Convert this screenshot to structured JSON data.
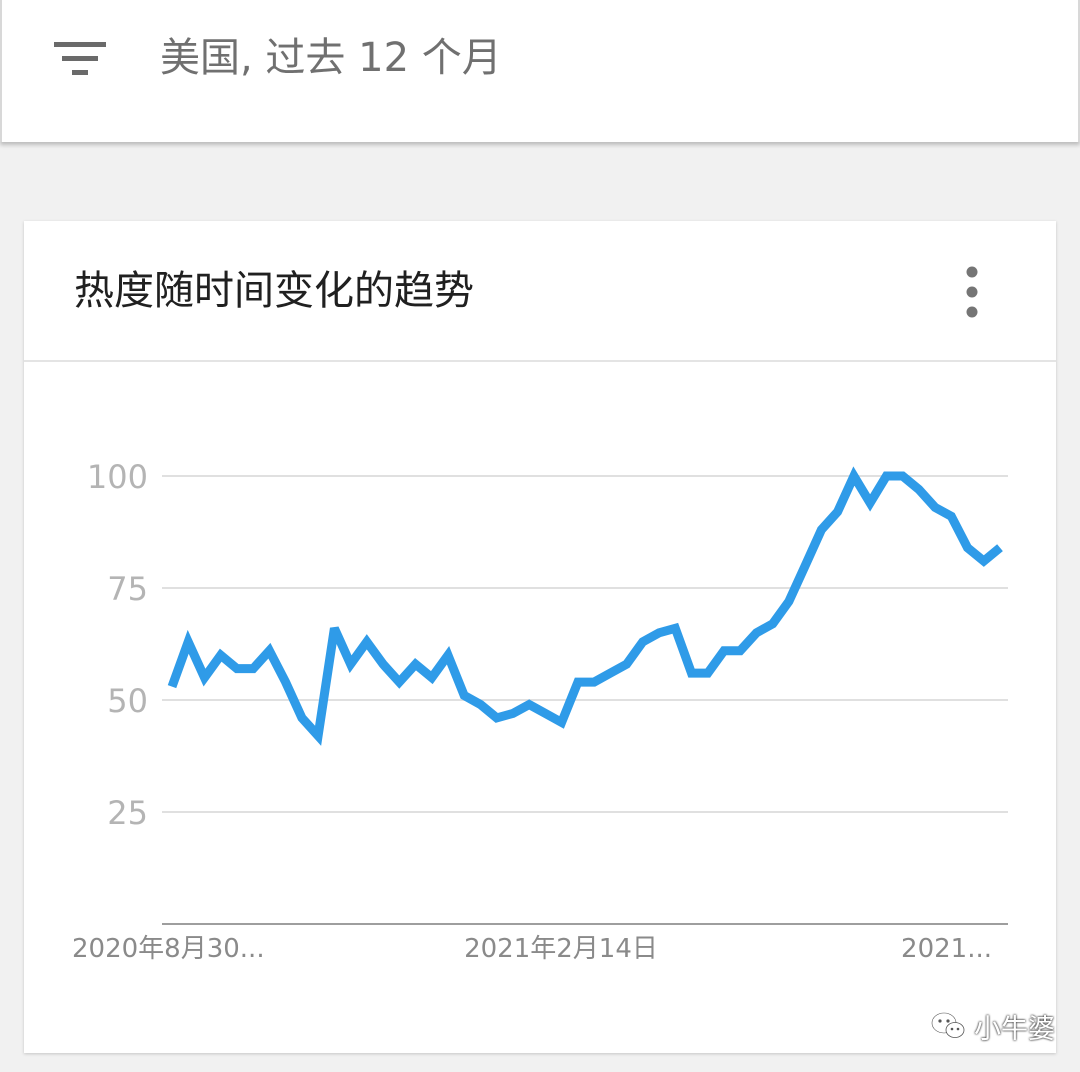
{
  "header": {
    "filter_label": "美国, 过去 12 个月",
    "filter_icon": "filter-icon"
  },
  "card": {
    "title": "热度随时间变化的趋势",
    "menu_icon": "more-vert-icon"
  },
  "chart_data": {
    "type": "line",
    "title": "",
    "xlabel": "",
    "ylabel": "",
    "ylim": [
      0,
      100
    ],
    "y_ticks": [
      25,
      50,
      75,
      100
    ],
    "x_tick_labels": [
      "2020年8月30...",
      "2021年2月14日",
      "2021..."
    ],
    "grid": true,
    "line_color": "#2f9be8",
    "series": [
      {
        "values": [
          53,
          63,
          55,
          60,
          57,
          57,
          61,
          54,
          46,
          42,
          66,
          58,
          63,
          58,
          54,
          58,
          55,
          60,
          51,
          49,
          46,
          47,
          49,
          47,
          45,
          54,
          54,
          56,
          58,
          63,
          65,
          66,
          56,
          56,
          61,
          61,
          65,
          67,
          72,
          80,
          88,
          92,
          100,
          94,
          100,
          100,
          97,
          93,
          91,
          84,
          81,
          84
        ]
      }
    ]
  },
  "watermark": {
    "text": "小牛婆",
    "icon": "wechat-icon"
  }
}
